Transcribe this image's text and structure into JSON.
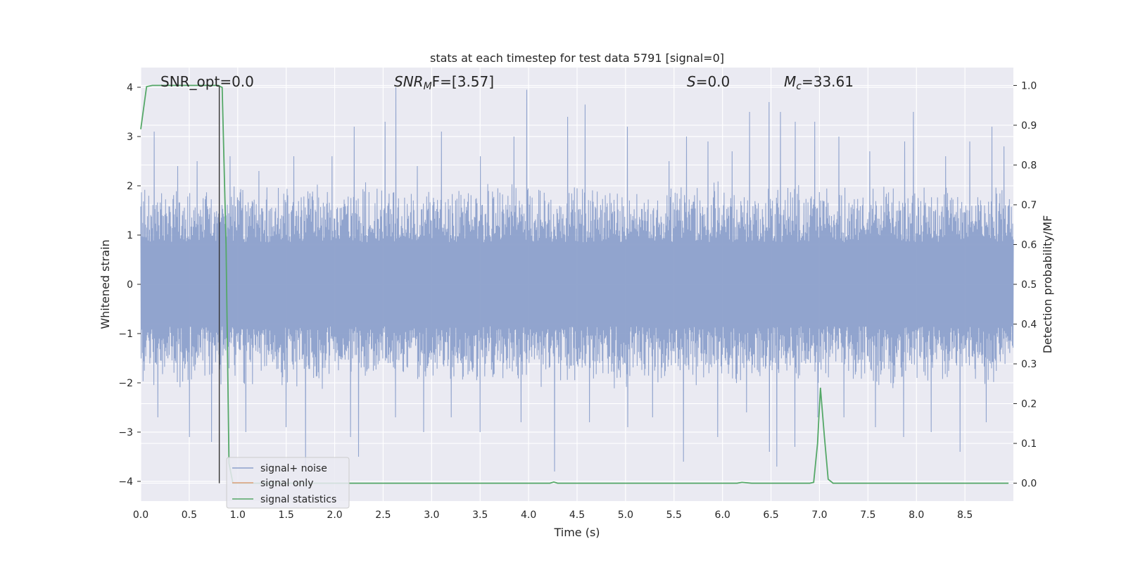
{
  "chart_data": {
    "type": "line",
    "title": "stats at each timestep for test data 5791 [signal=0]",
    "xlabel": "Time (s)",
    "ylabel": "Whitened strain",
    "y2label": "Detection probability/MF",
    "xlim": [
      0.0,
      9.0
    ],
    "ylim": [
      -4.4,
      4.4
    ],
    "y2lim": [
      -0.045,
      1.045
    ],
    "xticks": [
      0.0,
      0.5,
      1.0,
      1.5,
      2.0,
      2.5,
      3.0,
      3.5,
      4.0,
      4.5,
      5.0,
      5.5,
      6.0,
      6.5,
      7.0,
      7.5,
      8.0,
      8.5
    ],
    "xtick_labels": [
      "0.0",
      "0.5",
      "1.0",
      "1.5",
      "2.0",
      "2.5",
      "3.0",
      "3.5",
      "4.0",
      "4.5",
      "5.0",
      "5.5",
      "6.0",
      "6.5",
      "7.0",
      "7.5",
      "8.0",
      "8.5"
    ],
    "yticks": [
      -4,
      -3,
      -2,
      -1,
      0,
      1,
      2,
      3,
      4
    ],
    "ytick_labels": [
      "−4",
      "−3",
      "−2",
      "−1",
      "0",
      "1",
      "2",
      "3",
      "4"
    ],
    "y2ticks": [
      0.0,
      0.1,
      0.2,
      0.3,
      0.4,
      0.5,
      0.6,
      0.7,
      0.8,
      0.9,
      1.0
    ],
    "y2tick_labels": [
      "0.0",
      "0.1",
      "0.2",
      "0.3",
      "0.4",
      "0.5",
      "0.6",
      "0.7",
      "0.8",
      "0.9",
      "1.0"
    ],
    "grid": true,
    "legend_position": "bottom-left",
    "vline_x": 0.81,
    "annotations": {
      "snr_opt": "SNR_opt=0.0",
      "snr_mf_base": "SNR",
      "snr_mf_sub": "M",
      "snr_mf_rest": "F=[3.57]",
      "s_label": "S",
      "s_rest": "=0.0",
      "mc_base": "M",
      "mc_sub": "c",
      "mc_rest": "=33.61"
    },
    "series": [
      {
        "name": "signal+ noise",
        "color": "#8ca0cb",
        "axis": "left",
        "noise_amplitude": 1.55,
        "peaks": [
          [
            0.14,
            3.1
          ],
          [
            0.38,
            2.4
          ],
          [
            0.58,
            2.5
          ],
          [
            0.92,
            2.6
          ],
          [
            1.22,
            2.3
          ],
          [
            1.58,
            2.6
          ],
          [
            1.97,
            2.6
          ],
          [
            2.2,
            3.2
          ],
          [
            2.52,
            3.3
          ],
          [
            2.63,
            4.0
          ],
          [
            2.85,
            2.4
          ],
          [
            3.1,
            3.1
          ],
          [
            3.5,
            2.6
          ],
          [
            3.85,
            3.0
          ],
          [
            3.98,
            3.95
          ],
          [
            4.4,
            3.4
          ],
          [
            4.58,
            3.65
          ],
          [
            5.02,
            3.2
          ],
          [
            5.45,
            2.5
          ],
          [
            5.63,
            3.0
          ],
          [
            5.85,
            2.9
          ],
          [
            6.1,
            2.7
          ],
          [
            6.28,
            3.5
          ],
          [
            6.48,
            3.7
          ],
          [
            6.6,
            3.5
          ],
          [
            6.75,
            3.3
          ],
          [
            6.95,
            3.3
          ],
          [
            7.2,
            3.0
          ],
          [
            7.52,
            2.7
          ],
          [
            7.88,
            2.9
          ],
          [
            7.97,
            3.5
          ],
          [
            8.3,
            2.6
          ],
          [
            8.55,
            2.9
          ],
          [
            8.78,
            3.2
          ],
          [
            8.9,
            2.8
          ]
        ],
        "troughs": [
          [
            0.18,
            -2.7
          ],
          [
            0.5,
            -3.1
          ],
          [
            0.73,
            -3.2
          ],
          [
            1.08,
            -3.0
          ],
          [
            1.5,
            -2.9
          ],
          [
            1.7,
            -3.8
          ],
          [
            2.16,
            -3.1
          ],
          [
            2.25,
            -3.5
          ],
          [
            2.63,
            -2.7
          ],
          [
            2.92,
            -3.0
          ],
          [
            3.2,
            -2.7
          ],
          [
            3.5,
            -3.0
          ],
          [
            3.92,
            -2.8
          ],
          [
            4.27,
            -3.8
          ],
          [
            4.63,
            -2.8
          ],
          [
            5.02,
            -2.9
          ],
          [
            5.28,
            -2.7
          ],
          [
            5.6,
            -3.6
          ],
          [
            5.95,
            -3.1
          ],
          [
            6.25,
            -2.6
          ],
          [
            6.48,
            -3.4
          ],
          [
            6.56,
            -3.7
          ],
          [
            6.75,
            -3.3
          ],
          [
            6.98,
            -2.7
          ],
          [
            7.25,
            -2.7
          ],
          [
            7.58,
            -2.9
          ],
          [
            7.87,
            -3.1
          ],
          [
            8.15,
            -3.0
          ],
          [
            8.45,
            -3.4
          ],
          [
            8.72,
            -2.8
          ]
        ]
      },
      {
        "name": "signal only",
        "color": "#dd9f7a",
        "axis": "left",
        "x": [
          0.0,
          9.0
        ],
        "y": [
          0.0,
          0.0
        ]
      },
      {
        "name": "signal statistics",
        "color": "#55a868",
        "axis": "right",
        "x": [
          0.0,
          0.06,
          0.12,
          0.25,
          0.5,
          0.75,
          0.8,
          0.84,
          0.88,
          0.91,
          0.95,
          1.2,
          2.0,
          3.0,
          3.9,
          4.22,
          4.26,
          4.3,
          5.0,
          6.0,
          6.15,
          6.2,
          6.3,
          6.9,
          6.94,
          6.98,
          7.01,
          7.05,
          7.09,
          7.14,
          7.5,
          8.0,
          8.5,
          8.95
        ],
        "y": [
          0.89,
          0.997,
          1.0,
          1.0,
          1.0,
          1.0,
          1.0,
          0.995,
          0.6,
          0.05,
          0.0,
          0.0,
          0.0,
          0.0,
          0.0,
          0.0,
          0.003,
          0.0,
          0.0,
          0.0,
          0.0,
          0.002,
          0.0,
          0.0,
          0.002,
          0.1,
          0.24,
          0.12,
          0.01,
          0.0,
          0.0,
          0.0,
          0.0,
          0.0
        ]
      }
    ]
  }
}
